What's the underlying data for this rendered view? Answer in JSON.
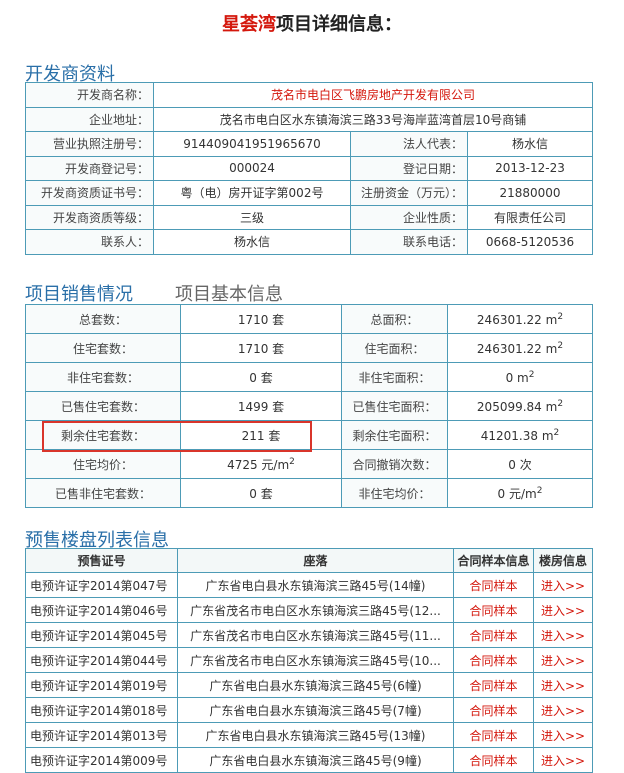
{
  "title": {
    "name": "星荟湾",
    "suffix": "项目详细信息："
  },
  "developer": {
    "heading": "开发商资料",
    "rows": [
      [
        "开发商名称：",
        "茂名市电白区飞鹏房地产开发有限公司"
      ],
      [
        "企业地址：",
        "茂名市电白区水东镇海滨三路33号海岸蓝湾首层10号商铺"
      ],
      [
        "营业执照注册号：",
        "914409041951965670",
        "法人代表：",
        "杨水信"
      ],
      [
        "开发商登记号：",
        "000024",
        "登记日期：",
        "2013-12-23"
      ],
      [
        "开发商资质证书号：",
        "粤（电）房开证字第002号",
        "注册资金（万元）：",
        "21880000"
      ],
      [
        "开发商资质等级：",
        "三级",
        "企业性质：",
        "有限责任公司"
      ],
      [
        "联系人：",
        "杨水信",
        "联系电话：",
        "0668-5120536"
      ]
    ]
  },
  "sales": {
    "tabs": [
      "项目销售情况",
      "项目基本信息"
    ],
    "rows": [
      [
        "总套数：",
        "1710 套",
        "总面积：",
        {
          "text": "246301.22 m",
          "sup": "2"
        }
      ],
      [
        "住宅套数：",
        "1710 套",
        "住宅面积：",
        {
          "text": "246301.22 m",
          "sup": "2"
        }
      ],
      [
        "非住宅套数：",
        "0 套",
        "非住宅面积：",
        {
          "text": "0 m",
          "sup": "2"
        }
      ],
      [
        "已售住宅套数：",
        "1499 套",
        "已售住宅面积：",
        {
          "text": "205099.84 m",
          "sup": "2"
        }
      ],
      [
        "剩余住宅套数：",
        "211 套",
        "剩余住宅面积：",
        {
          "text": "41201.38 m",
          "sup": "2"
        }
      ],
      [
        "住宅均价：",
        {
          "text": "4725 元/m",
          "sup": "2"
        },
        "合同撤销次数：",
        "0 次"
      ],
      [
        "已售非住宅套数：",
        "0 套",
        "非住宅均价：",
        {
          "text": "0 元/m",
          "sup": "2"
        }
      ]
    ]
  },
  "presale": {
    "heading": "预售楼盘列表信息",
    "columns": [
      "预售证号",
      "座落",
      "合同样本信息",
      "楼房信息"
    ],
    "rows": [
      [
        "电预许证字2014第047号",
        "广东省电白县水东镇海滨三路45号(14幢)",
        "合同样本",
        "进入>>"
      ],
      [
        "电预许证字2014第046号",
        "广东省茂名市电白区水东镇海滨三路45号(12...",
        "合同样本",
        "进入>>"
      ],
      [
        "电预许证字2014第045号",
        "广东省茂名市电白区水东镇海滨三路45号(11...",
        "合同样本",
        "进入>>"
      ],
      [
        "电预许证字2014第044号",
        "广东省茂名市电白区水东镇海滨三路45号(10...",
        "合同样本",
        "进入>>"
      ],
      [
        "电预许证字2014第019号",
        "广东省电白县水东镇海滨三路45号(6幢)",
        "合同样本",
        "进入>>"
      ],
      [
        "电预许证字2014第018号",
        "广东省电白县水东镇海滨三路45号(7幢)",
        "合同样本",
        "进入>>"
      ],
      [
        "电预许证字2014第013号",
        "广东省电白县水东镇海滨三路45号(13幢)",
        "合同样本",
        "进入>>"
      ],
      [
        "电预许证字2014第009号",
        "广东省电白县水东镇海滨三路45号(9幢)",
        "合同样本",
        "进入>>"
      ]
    ]
  }
}
